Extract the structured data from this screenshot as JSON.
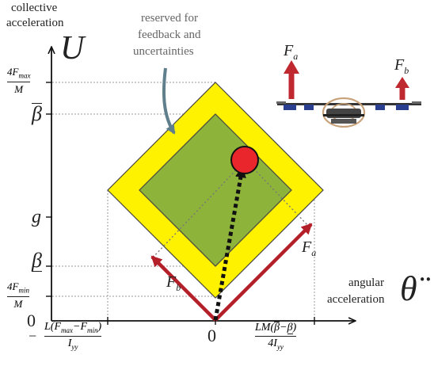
{
  "axes": {
    "y_title_line1": "collective",
    "y_title_line2": "acceleration",
    "y_symbol": "U",
    "x_title_line1": "angular",
    "x_title_line2": "acceleration",
    "x_symbol": "θ̈"
  },
  "annotation": {
    "line1": "reserved for",
    "line2": "feedback and",
    "line3": "uncertainties"
  },
  "y_ticks": {
    "fmax_num": "4F",
    "fmax_sub": "max",
    "fmax_den": "M",
    "beta_bar": "β",
    "g": "g",
    "beta_under": "β",
    "fmin_num": "4F",
    "fmin_sub": "min",
    "fmin_den": "M",
    "zero": "0"
  },
  "x_ticks": {
    "left_minus": "−",
    "left_num": "L(F",
    "left_num_sub1": "max",
    "left_num_mid": "−F",
    "left_num_sub2": "min",
    "left_num_end": ")",
    "left_den": "I",
    "left_den_sub": "yy",
    "zero": "0",
    "right_num_a": "LM(",
    "right_num_beta_bar": "β",
    "right_num_minus": "−",
    "right_num_beta_under": "β",
    "right_num_end": ")",
    "right_den": "4I",
    "right_den_sub": "yy"
  },
  "forces": {
    "fa": "F",
    "fa_sub": "a",
    "fb": "F",
    "fb_sub": "b"
  },
  "colors": {
    "outer_region": "#fff200",
    "inner_region": "#8db33a",
    "force_arrow": "#b3202a",
    "point": "#e8262b",
    "annotation_arrow": "#5f7f8c"
  }
}
